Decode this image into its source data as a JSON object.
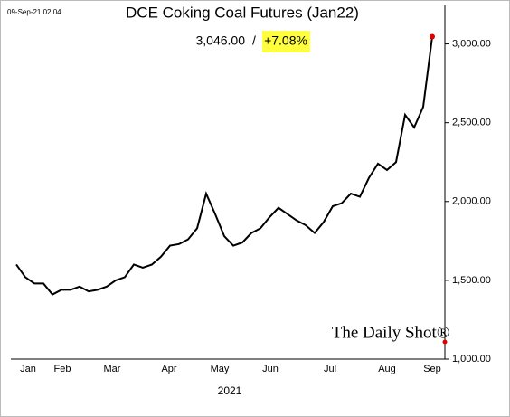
{
  "chart_data": {
    "type": "line",
    "title": "DCE Coking Coal Futures (Jan22)",
    "timestamp": "09-Sep-21 02:04",
    "last_value_label": "3,046.00",
    "separator": "/",
    "change_label": "+7.08%",
    "x_label": "2021",
    "watermark": "The Daily Shot®",
    "color": "#000000",
    "last_point_color": "#e00000",
    "highlight_color": "#ffff40",
    "values": [
      1600,
      1520,
      1480,
      1480,
      1410,
      1440,
      1440,
      1460,
      1430,
      1440,
      1460,
      1500,
      1520,
      1600,
      1580,
      1600,
      1650,
      1720,
      1730,
      1760,
      1830,
      2050,
      1920,
      1780,
      1720,
      1740,
      1800,
      1830,
      1900,
      1960,
      1920,
      1880,
      1850,
      1800,
      1870,
      1970,
      1990,
      2050,
      2030,
      2150,
      2240,
      2200,
      2250,
      2550,
      2470,
      2600,
      3046
    ],
    "xlim": [
      0,
      46
    ],
    "xticks": [
      {
        "value": 1.3,
        "label": "Jan"
      },
      {
        "value": 5.1,
        "label": "Feb"
      },
      {
        "value": 10.6,
        "label": "Mar"
      },
      {
        "value": 16.9,
        "label": "Apr"
      },
      {
        "value": 22.5,
        "label": "May"
      },
      {
        "value": 28.1,
        "label": "Jun"
      },
      {
        "value": 34.7,
        "label": "Jul"
      },
      {
        "value": 41,
        "label": "Aug"
      },
      {
        "value": 46,
        "label": "Sep"
      }
    ],
    "ylim": [
      1000,
      3250
    ],
    "yticks": [
      {
        "value": 1000,
        "label": "1,000.00"
      },
      {
        "value": 1500,
        "label": "1,500.00"
      },
      {
        "value": 2000,
        "label": "2,000.00"
      },
      {
        "value": 2500,
        "label": "2,500.00"
      },
      {
        "value": 3000,
        "label": "3,000.00"
      }
    ]
  }
}
